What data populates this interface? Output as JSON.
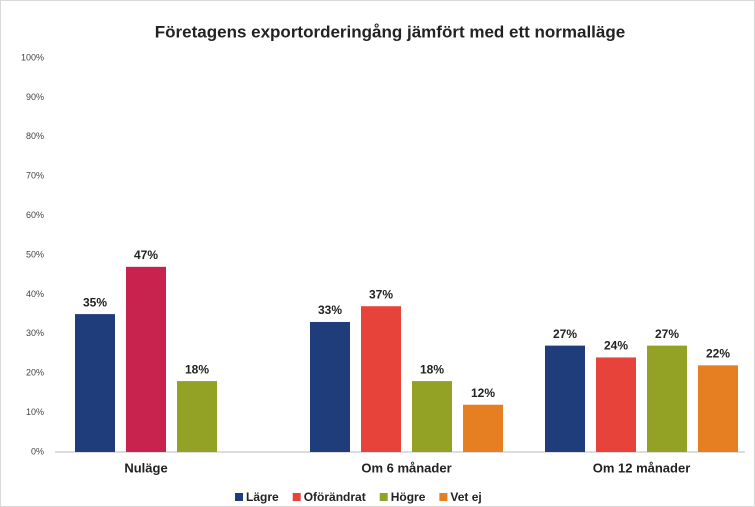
{
  "chart_data": {
    "type": "bar",
    "title": "Företagens exportorderingång jämfört med ett normalläge",
    "categories": [
      "Nuläge",
      "Om 6 månader",
      "Om 12 månader"
    ],
    "series": [
      {
        "name": "Lägre",
        "color": "#1f3d7a",
        "values": [
          35,
          33,
          27
        ],
        "value_labels": [
          "35%",
          "33%",
          "27%"
        ]
      },
      {
        "name": "Oförändrat",
        "color": "#e8433a",
        "colors": [
          "#c8234e",
          "#e8433a",
          "#e8433a"
        ],
        "values": [
          47,
          37,
          24
        ],
        "value_labels": [
          "47%",
          "37%",
          "24%"
        ]
      },
      {
        "name": "Högre",
        "color": "#93a125",
        "values": [
          18,
          18,
          27
        ],
        "value_labels": [
          "18%",
          "18%",
          "27%"
        ]
      },
      {
        "name": "Vet ej",
        "color": "#e67e22",
        "values": [
          null,
          12,
          22
        ],
        "value_labels": [
          null,
          "12%",
          "22%"
        ]
      }
    ],
    "ylim": [
      0,
      100
    ],
    "yticks": [
      {
        "value": 0,
        "label": "0%"
      },
      {
        "value": 10,
        "label": "10%"
      },
      {
        "value": 20,
        "label": "20%"
      },
      {
        "value": 30,
        "label": "30%"
      },
      {
        "value": 40,
        "label": "40%"
      },
      {
        "value": 50,
        "label": "50%"
      },
      {
        "value": 60,
        "label": "60%"
      },
      {
        "value": 70,
        "label": "70%"
      },
      {
        "value": 80,
        "label": "80%"
      },
      {
        "value": 90,
        "label": "90%"
      },
      {
        "value": 100,
        "label": "100%"
      }
    ],
    "grid": false,
    "legend": "bottom"
  }
}
